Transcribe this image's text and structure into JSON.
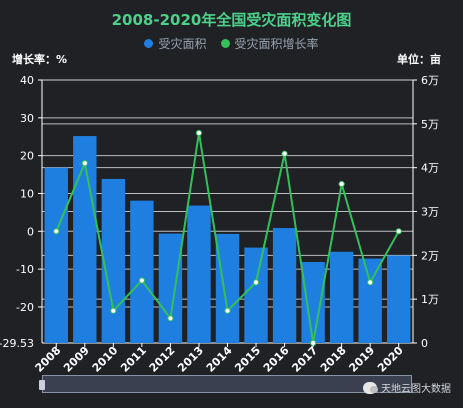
{
  "chart_data": {
    "type": "bar",
    "title": "2008-2020年全国受灾面积变化图",
    "categories": [
      "2008",
      "2009",
      "2010",
      "2011",
      "2012",
      "2013",
      "2014",
      "2015",
      "2016",
      "2017",
      "2018",
      "2019",
      "2020"
    ],
    "series": [
      {
        "name": "受灾面积",
        "type": "bar",
        "axis": "right",
        "color": "#1e7fe0",
        "values": [
          39990,
          47210,
          37430,
          32470,
          24960,
          31350,
          24890,
          21770,
          26220,
          18480,
          20810,
          19260,
          19960
        ]
      },
      {
        "name": "受灾面积增长率",
        "type": "line",
        "axis": "left",
        "color": "#33c05a",
        "values": [
          0,
          18.0,
          -21.0,
          -13.0,
          -23.0,
          26.0,
          -21.0,
          -13.5,
          20.5,
          -29.53,
          12.5,
          -13.5,
          0
        ]
      }
    ],
    "y_left": {
      "name": "增长率：%",
      "min": -29.53,
      "max": 40,
      "ticks": [
        40,
        30,
        20,
        10,
        0,
        -10,
        -20
      ],
      "min_label": "-29.53"
    },
    "y_right": {
      "name": "单位：亩",
      "min": 0,
      "max": 60000,
      "ticks": [
        0,
        10000,
        20000,
        30000,
        40000,
        50000,
        60000
      ],
      "tick_labels": [
        "0",
        "1万",
        "2万",
        "3万",
        "4万",
        "5万",
        "6万"
      ]
    },
    "grid": true,
    "legend": "top-center",
    "datazoom": true
  },
  "watermark": {
    "text": "天地云图大数据"
  }
}
